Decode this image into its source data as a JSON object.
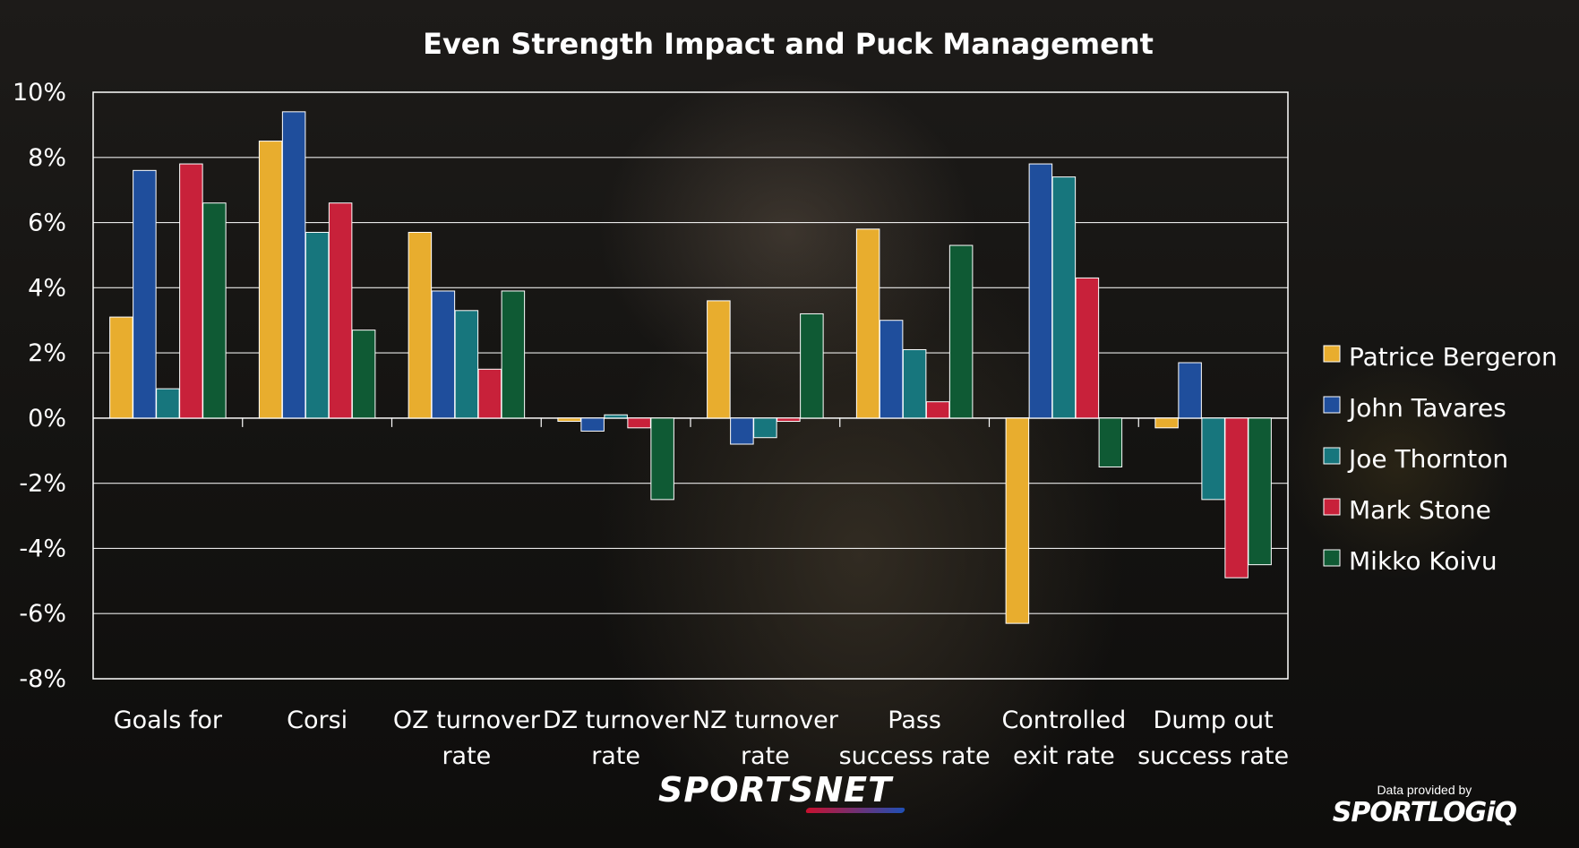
{
  "colors": {
    "background": "#161412",
    "text": "#ffffff",
    "grid": "#ffffff"
  },
  "chart_data": {
    "type": "bar",
    "title": "Even Strength Impact and Puck Management",
    "categories": [
      [
        "Goals for"
      ],
      [
        "Corsi"
      ],
      [
        "OZ turnover",
        "rate"
      ],
      [
        "DZ turnover",
        "rate"
      ],
      [
        "NZ turnover",
        "rate"
      ],
      [
        "Pass",
        "success rate"
      ],
      [
        "Controlled",
        "exit rate"
      ],
      [
        "Dump out",
        "success rate"
      ]
    ],
    "series": [
      {
        "name": "Patrice Bergeron",
        "color": "#e8ad2e",
        "values": [
          3.1,
          8.5,
          5.7,
          -0.1,
          3.6,
          5.8,
          -6.3,
          -0.3
        ]
      },
      {
        "name": "John Tavares",
        "color": "#1f4e9c",
        "values": [
          7.6,
          9.4,
          3.9,
          -0.4,
          -0.8,
          3.0,
          7.8,
          1.7
        ]
      },
      {
        "name": "Joe Thornton",
        "color": "#17767d",
        "values": [
          0.9,
          5.7,
          3.3,
          0.1,
          -0.6,
          2.1,
          7.4,
          -2.5
        ]
      },
      {
        "name": "Mark Stone",
        "color": "#c8213a",
        "values": [
          7.8,
          6.6,
          1.5,
          -0.3,
          -0.1,
          0.5,
          4.3,
          -4.9
        ]
      },
      {
        "name": "Mikko Koivu",
        "color": "#0f5a34",
        "values": [
          6.6,
          2.7,
          3.9,
          -2.5,
          3.2,
          5.3,
          -1.5,
          -4.5
        ]
      }
    ],
    "ylim": [
      -8,
      10
    ],
    "yticks": [
      10,
      8,
      6,
      4,
      2,
      0,
      -2,
      -4,
      -6,
      -8
    ],
    "ytick_labels": [
      "10%",
      "8%",
      "6%",
      "4%",
      "2%",
      "0%",
      "-2%",
      "-4%",
      "-6%",
      "-8%"
    ],
    "grid": true,
    "legend_position": "right"
  },
  "branding": {
    "network_logo": "SPORTSNET",
    "credit_text": "Data provided by",
    "credit_logo": "SPORTLOGiQ"
  }
}
